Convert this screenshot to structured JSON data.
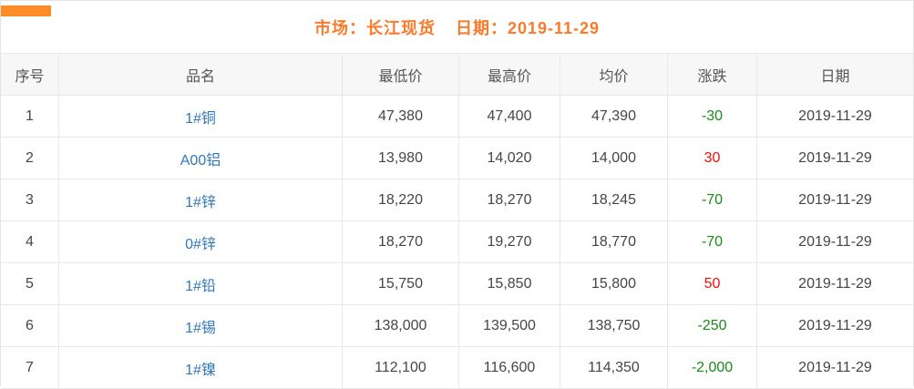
{
  "meta": {
    "market_label": "市场：长江现货",
    "date_label": "日期：2019-11-29"
  },
  "colors": {
    "accent_orange": "#fb7a2b",
    "corner_bar_orange": "#ff8c28",
    "link_blue": "#3377b6",
    "rise_red": "#f40b0b",
    "fall_green": "#1a8a1a",
    "border_gray": "#e8e8e8",
    "header_bg": "#f7f7f7",
    "cell_text": "#454545"
  },
  "table": {
    "columns": [
      {
        "key": "no",
        "label": "序号"
      },
      {
        "key": "name",
        "label": "品名"
      },
      {
        "key": "low",
        "label": "最低价"
      },
      {
        "key": "high",
        "label": "最高价"
      },
      {
        "key": "avg",
        "label": "均价"
      },
      {
        "key": "change",
        "label": "涨跌"
      },
      {
        "key": "date",
        "label": "日期"
      }
    ],
    "rows": [
      {
        "no": "1",
        "name": "1#铜",
        "low": "47,380",
        "high": "47,400",
        "avg": "47,390",
        "change": "-30",
        "trend": "fall",
        "date": "2019-11-29"
      },
      {
        "no": "2",
        "name": "A00铝",
        "low": "13,980",
        "high": "14,020",
        "avg": "14,000",
        "change": "30",
        "trend": "rise",
        "date": "2019-11-29"
      },
      {
        "no": "3",
        "name": "1#锌",
        "low": "18,220",
        "high": "18,270",
        "avg": "18,245",
        "change": "-70",
        "trend": "fall",
        "date": "2019-11-29"
      },
      {
        "no": "4",
        "name": "0#锌",
        "low": "18,270",
        "high": "19,270",
        "avg": "18,770",
        "change": "-70",
        "trend": "fall",
        "date": "2019-11-29"
      },
      {
        "no": "5",
        "name": "1#铅",
        "low": "15,750",
        "high": "15,850",
        "avg": "15,800",
        "change": "50",
        "trend": "rise",
        "date": "2019-11-29"
      },
      {
        "no": "6",
        "name": "1#锡",
        "low": "138,000",
        "high": "139,500",
        "avg": "138,750",
        "change": "-250",
        "trend": "fall",
        "date": "2019-11-29"
      },
      {
        "no": "7",
        "name": "1#镍",
        "low": "112,100",
        "high": "116,600",
        "avg": "114,350",
        "change": "-2,000",
        "trend": "fall",
        "date": "2019-11-29"
      }
    ]
  }
}
